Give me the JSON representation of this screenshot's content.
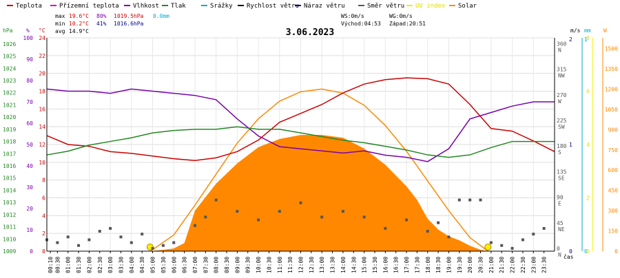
{
  "chart_data": {
    "type": "line",
    "title": "3.06.2023",
    "xlabel": "čas",
    "x_ticks": [
      "00:30",
      "01:00",
      "01:30",
      "02:00",
      "02:30",
      "03:00",
      "03:30",
      "04:00",
      "04:30",
      "05:00",
      "05:30",
      "06:00",
      "06:30",
      "07:00",
      "07:30",
      "08:00",
      "08:30",
      "09:00",
      "09:30",
      "10:00",
      "10:30",
      "11:00",
      "11:30",
      "12:00",
      "12:30",
      "13:00",
      "13:30",
      "14:00",
      "14:30",
      "15:00",
      "15:30",
      "16:00",
      "16:30",
      "17:00",
      "17:30",
      "18:00",
      "18:30",
      "19:00",
      "19:30",
      "20:00",
      "20:30",
      "21:00",
      "21:30",
      "22:00",
      "22:30",
      "23:00",
      "23:30"
    ],
    "x_ticks_display": [
      "00:10",
      "00:30",
      "01:00",
      "01:30",
      "02:00",
      "02:30",
      "03:00",
      "03:30",
      "04:00",
      "04:30",
      "05:00",
      "05:30",
      "06:00",
      "06:30",
      "07:00",
      "07:30",
      "08:00",
      "08:30",
      "09:00",
      "09:30",
      "10:00",
      "10:30",
      "11:00",
      "11:30",
      "12:00",
      "12:30",
      "13:00",
      "13:30",
      "14:00",
      "14:30",
      "15:00",
      "15:30",
      "16:00",
      "16:30",
      "17:00",
      "17:30",
      "18:00",
      "18:30",
      "19:00",
      "19:30",
      "20:00",
      "20:30",
      "21:00",
      "21:30",
      "22:00",
      "22:30",
      "23:00",
      "23:30"
    ],
    "legend": [
      {
        "name": "Teplota",
        "color": "#cc0000"
      },
      {
        "name": "Přízemní teplota",
        "color": "#cc00cc"
      },
      {
        "name": "Vlhkost",
        "color": "#7700aa"
      },
      {
        "name": "Tlak",
        "color": "#228822"
      },
      {
        "name": "Srážky",
        "color": "#00aacc"
      },
      {
        "name": "Rychlost větru",
        "color": "#000000"
      },
      {
        "name": "Náraz větru",
        "color": "#000088"
      },
      {
        "name": "Směr větru",
        "color": "#555555"
      },
      {
        "name": "UV index",
        "color": "#eeee00"
      },
      {
        "name": "Solar",
        "color": "#ff8800"
      }
    ],
    "stats": {
      "max_label": "max",
      "max_temp": "19.6°C",
      "max_hum": "80%",
      "max_press": "1019.5hPa",
      "max_rain": "0.0mm",
      "min_label": "min",
      "min_temp": "10.2°C",
      "min_hum": "41%",
      "min_press": "1016.6hPa",
      "avg_label": "avg",
      "avg_temp": "14.9°C",
      "ws": "WS:0m/s",
      "wg": "WG:0m/s",
      "sunrise": "Východ:04:53",
      "sunset": "Západ:20:51"
    },
    "axes": {
      "pressure": {
        "unit": "hPa",
        "ticks": [
          "1009",
          "1010",
          "1011",
          "1012",
          "1013",
          "1014",
          "1015",
          "1016",
          "1017",
          "1018",
          "1019",
          "1020",
          "1021",
          "1022",
          "1023",
          "1024",
          "1025",
          "1026"
        ],
        "ylim": [
          1009,
          1026.5
        ]
      },
      "humidity": {
        "unit": "%",
        "ticks": [
          "0",
          "10",
          "20",
          "30",
          "40",
          "50",
          "60",
          "70",
          "80",
          "90",
          "100"
        ],
        "ylim": [
          0,
          100
        ]
      },
      "temperature": {
        "unit": "°C",
        "ticks": [
          "0",
          "2",
          "4",
          "6",
          "8",
          "10",
          "12",
          "14",
          "16",
          "18",
          "20",
          "22",
          "24"
        ],
        "ylim": [
          0,
          24
        ]
      },
      "direction": {
        "ticks": [
          "0",
          "45",
          "90",
          "135",
          "180",
          "225",
          "270",
          "315",
          "360"
        ],
        "labels": [
          "N",
          "NE",
          "E",
          "SE",
          "S",
          "SW",
          "W",
          "NW",
          "N"
        ]
      },
      "wind": {
        "unit": "m/s",
        "ticks": [
          "0",
          "1",
          "2"
        ]
      },
      "rain": {
        "unit": "mm",
        "ticks": [
          "0",
          "1"
        ]
      },
      "uv": {
        "ticks": [
          "0",
          "2",
          "4",
          "6",
          "8"
        ]
      },
      "solar": {
        "unit": "W",
        "ticks": [
          "0",
          "150",
          "300",
          "450",
          "600",
          "750",
          "900",
          "1050",
          "1200",
          "1350",
          "1500"
        ]
      }
    },
    "series": [
      {
        "name": "Teplota",
        "unit": "°C",
        "x": [
          0,
          1,
          2,
          3,
          4,
          5,
          6,
          7,
          8,
          9,
          10,
          11,
          12,
          13,
          14,
          15,
          16,
          17,
          18,
          19,
          20,
          21,
          22,
          23,
          24
        ],
        "values": [
          13.0,
          12.0,
          11.8,
          11.2,
          11.0,
          10.7,
          10.4,
          10.2,
          10.5,
          11.2,
          12.5,
          14.5,
          15.5,
          16.5,
          17.8,
          18.8,
          19.3,
          19.5,
          19.4,
          18.8,
          16.5,
          13.8,
          13.5,
          12.4,
          11.2
        ]
      },
      {
        "name": "Vlhkost",
        "unit": "%",
        "x": [
          0,
          1,
          2,
          3,
          4,
          5,
          6,
          7,
          8,
          9,
          10,
          11,
          12,
          13,
          14,
          15,
          16,
          17,
          18,
          19,
          20,
          21,
          22,
          23,
          24
        ],
        "values": [
          76,
          75,
          75,
          74,
          76,
          75,
          74,
          73,
          71,
          62,
          54,
          49,
          48,
          47,
          46,
          47,
          45,
          44,
          42,
          48,
          62,
          65,
          68,
          70,
          70
        ]
      },
      {
        "name": "Tlak",
        "unit": "hPa",
        "x": [
          0,
          1,
          2,
          3,
          4,
          5,
          6,
          7,
          8,
          9,
          10,
          11,
          12,
          13,
          14,
          15,
          16,
          17,
          18,
          19,
          20,
          21,
          22,
          23,
          24
        ],
        "values": [
          1016.9,
          1017.2,
          1017.7,
          1018.0,
          1018.3,
          1018.7,
          1018.9,
          1019.0,
          1019.0,
          1019.2,
          1019.0,
          1019.0,
          1018.7,
          1018.4,
          1018.1,
          1017.9,
          1017.6,
          1017.3,
          1016.9,
          1016.7,
          1016.9,
          1017.5,
          1018.0,
          1018.0,
          1018.0
        ]
      },
      {
        "name": "Solar",
        "unit": "W/m2",
        "x": [
          4.9,
          5.5,
          6.0,
          6.5,
          7.0,
          7.5,
          8.0,
          9.0,
          10.0,
          11.0,
          12.0,
          13.0,
          14.0,
          15.0,
          16.0,
          17.0,
          17.5,
          18.0,
          18.5,
          19.0,
          19.5,
          20.0,
          20.5,
          20.85
        ],
        "values": [
          0,
          10,
          20,
          60,
          300,
          400,
          500,
          650,
          770,
          830,
          860,
          860,
          840,
          760,
          640,
          480,
          380,
          240,
          160,
          110,
          80,
          40,
          10,
          0
        ]
      },
      {
        "name": "Solar (max)",
        "unit": "W/m2",
        "x": [
          4.9,
          6.0,
          7.0,
          8.0,
          9.0,
          10.0,
          11.0,
          12.0,
          13.0,
          14.0,
          15.0,
          16.0,
          17.0,
          18.0,
          19.0,
          20.0,
          20.85
        ],
        "values": [
          0,
          120,
          340,
          570,
          800,
          980,
          1110,
          1180,
          1200,
          1170,
          1080,
          930,
          740,
          520,
          300,
          100,
          0
        ]
      },
      {
        "name": "Směr větru",
        "unit": "°",
        "x": [
          0.0,
          0.5,
          1.0,
          1.5,
          2.0,
          2.5,
          3.0,
          3.5,
          4.0,
          4.5,
          5.0,
          5.5,
          6.0,
          7.0,
          7.5,
          8.0,
          9.0,
          10.0,
          11.0,
          12.0,
          13.0,
          14.0,
          15.0,
          16.0,
          17.0,
          18.0,
          18.5,
          19.0,
          19.5,
          20.0,
          20.5,
          21.0,
          21.5,
          22.0,
          22.5,
          23.0,
          23.5
        ],
        "values": [
          20,
          15,
          25,
          10,
          20,
          35,
          40,
          25,
          15,
          30,
          5,
          10,
          15,
          45,
          60,
          90,
          70,
          55,
          70,
          85,
          60,
          70,
          60,
          40,
          55,
          35,
          50,
          25,
          90,
          90,
          90,
          15,
          10,
          5,
          20,
          30,
          40
        ]
      }
    ],
    "points": {
      "sunrise_h": 4.88,
      "sunset_h": 20.85
    }
  }
}
